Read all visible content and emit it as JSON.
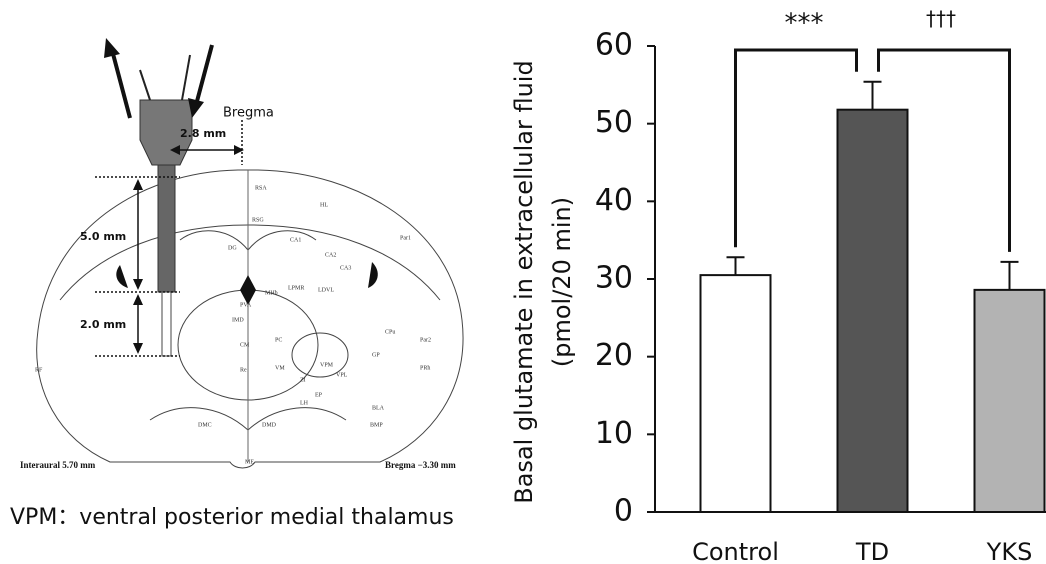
{
  "diagram": {
    "bregma": "Bregma",
    "offset": "2.8 mm",
    "depth1": "5.0 mm",
    "depth2": "2.0 mm",
    "interaural": "Interaural 5.70 mm",
    "bregma_level": "Bregma −3.30 mm",
    "caption": "VPM：ventral posterior medial thalamus",
    "regions": [
      "RSA",
      "HL",
      "Par1",
      "CA1",
      "CA2",
      "CA3",
      "DG",
      "LPMR",
      "LDVL",
      "VPM",
      "VPL",
      "PC",
      "CM",
      "Re",
      "ZI",
      "Par2",
      "PRh",
      "GP",
      "CPu",
      "BLA",
      "BMP",
      "DMD",
      "VM",
      "EP",
      "LH",
      "MHb",
      "PVA",
      "IMD",
      "RSG",
      "DMC",
      "ME",
      "RF"
    ]
  },
  "chart_data": {
    "type": "bar",
    "ylabel": [
      "Basal glutamate in extracellular fluid",
      "(pmol/20 min)"
    ],
    "categories": [
      "Control",
      "TD",
      "YKS"
    ],
    "values": [
      30.5,
      51.8,
      28.6
    ],
    "errors": [
      2.3,
      3.6,
      3.6
    ],
    "colors": [
      "#ffffff",
      "#555555",
      "#b3b3b3"
    ],
    "annotations": [
      "***",
      "†††"
    ],
    "ylim": [
      0,
      60
    ],
    "yticks": [
      0,
      10,
      20,
      30,
      40,
      50,
      60
    ]
  }
}
